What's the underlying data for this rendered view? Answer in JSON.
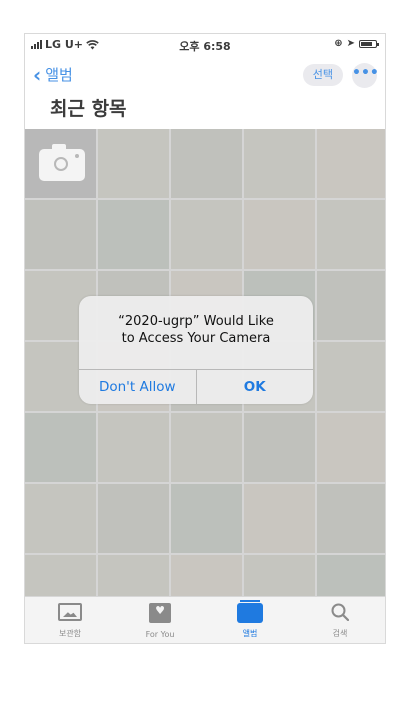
{
  "status_bar": {
    "carrier": "LG U+",
    "time": "오후 6:58"
  },
  "nav": {
    "back_label": "앨범",
    "select_label": "선택",
    "more_label": "•••"
  },
  "page_title": "최근 항목",
  "alert": {
    "line1": "“2020-ugrp” Would Like",
    "line2": "to Access Your Camera",
    "deny_label": "Don't Allow",
    "ok_label": "OK"
  },
  "tabs": [
    {
      "label": "보관함",
      "icon": "photo-library-icon",
      "active": false
    },
    {
      "label": "For You",
      "icon": "for-you-icon",
      "active": false
    },
    {
      "label": "앨범",
      "icon": "album-icon",
      "active": true
    },
    {
      "label": "검색",
      "icon": "search-icon",
      "active": false
    }
  ],
  "colors": {
    "accent": "#1f7ae0",
    "inactive": "#8a8a8a"
  }
}
